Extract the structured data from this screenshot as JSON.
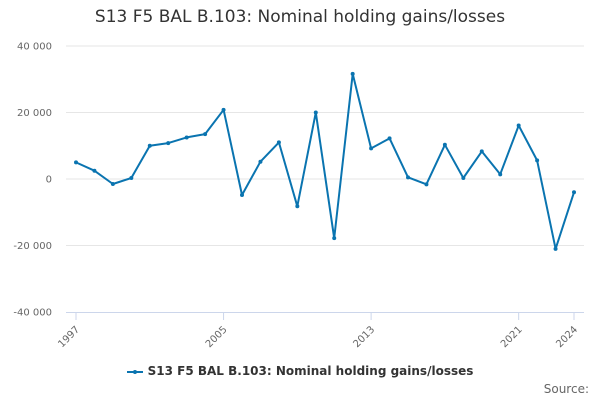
{
  "chart_data": {
    "type": "line",
    "title": "S13 F5 BAL B.103: Nominal holding gains/losses",
    "xlabel": "",
    "ylabel": "",
    "x": [
      1997,
      1998,
      1999,
      2000,
      2001,
      2002,
      2003,
      2004,
      2005,
      2006,
      2007,
      2008,
      2009,
      2010,
      2011,
      2012,
      2013,
      2014,
      2015,
      2016,
      2017,
      2018,
      2019,
      2020,
      2021,
      2022,
      2023,
      2024
    ],
    "series": [
      {
        "name": "S13 F5 BAL B.103: Nominal holding gains/losses",
        "color": "#0a74b0",
        "values": [
          5000,
          2500,
          -1500,
          300,
          10000,
          10800,
          12500,
          13500,
          20800,
          -4800,
          5200,
          11000,
          -8200,
          20000,
          -17800,
          31600,
          9200,
          12200,
          500,
          -1600,
          10300,
          300,
          8300,
          1400,
          16100,
          5600,
          -21000,
          -4000
        ]
      }
    ],
    "ylim": [
      -40000,
      40000
    ],
    "yticks": [
      40000,
      20000,
      0,
      -20000,
      -40000
    ],
    "ytick_labels": [
      "40 000",
      "20 000",
      "0",
      "-20 000",
      "-40 000"
    ],
    "xticks": [
      1997,
      2005,
      2013,
      2021,
      2024
    ],
    "xtick_labels": [
      "1997",
      "2005",
      "2013",
      "2021",
      "2024"
    ],
    "grid": true,
    "legend_position": "bottom-center",
    "source_label": "Source:"
  }
}
